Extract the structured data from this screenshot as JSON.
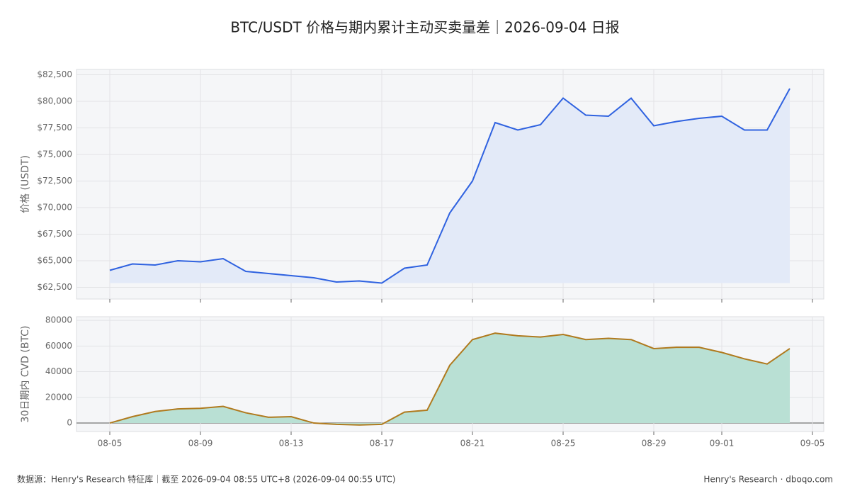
{
  "title": "BTC/USDT 价格与期内累计主动买卖量差｜2026-09-04 日报",
  "footer": {
    "left": "数据源：Henry's Research 特征库｜截至 2026-09-04 08:55 UTC+8 (2026-09-04 00:55 UTC)",
    "right": "Henry's Research  ·  dboqo.com"
  },
  "chart_data": [
    {
      "type": "line",
      "y_label": "价格 (USDT)",
      "grid": true,
      "fill": true,
      "x": [
        "08-05",
        "08-06",
        "08-07",
        "08-08",
        "08-09",
        "08-10",
        "08-11",
        "08-12",
        "08-13",
        "08-14",
        "08-15",
        "08-16",
        "08-17",
        "08-18",
        "08-19",
        "08-20",
        "08-21",
        "08-22",
        "08-23",
        "08-24",
        "08-25",
        "08-26",
        "08-27",
        "08-28",
        "08-29",
        "08-30",
        "08-31",
        "09-01",
        "09-02",
        "09-03",
        "09-04"
      ],
      "series": [
        {
          "color": "#2f62e0",
          "fill_color": "#e3eaf8",
          "values": [
            64100,
            64700,
            64600,
            65000,
            64900,
            65200,
            64000,
            63800,
            63600,
            63400,
            63000,
            63100,
            62900,
            64300,
            64600,
            69500,
            72500,
            78000,
            77300,
            77800,
            80300,
            78700,
            78600,
            80300,
            77700,
            78100,
            78400,
            78600,
            77300,
            77300,
            81200
          ]
        }
      ],
      "xlim": [
        "08-05",
        "09-05"
      ],
      "ylim": [
        61400,
        83000
      ],
      "yticks": [
        {
          "value": 62500,
          "label": "$62,500"
        },
        {
          "value": 65000,
          "label": "$65,000"
        },
        {
          "value": 67500,
          "label": "$67,500"
        },
        {
          "value": 70000,
          "label": "$70,000"
        },
        {
          "value": 72500,
          "label": "$72,500"
        },
        {
          "value": 75000,
          "label": "$75,000"
        },
        {
          "value": 77500,
          "label": "$77,500"
        },
        {
          "value": 80000,
          "label": "$80,000"
        },
        {
          "value": 82500,
          "label": "$82,500"
        }
      ]
    },
    {
      "type": "line",
      "y_label": "30日期内 CVD (BTC)",
      "grid": true,
      "fill": true,
      "x": [
        "08-05",
        "08-06",
        "08-07",
        "08-08",
        "08-09",
        "08-10",
        "08-11",
        "08-12",
        "08-13",
        "08-14",
        "08-15",
        "08-16",
        "08-17",
        "08-18",
        "08-19",
        "08-20",
        "08-21",
        "08-22",
        "08-23",
        "08-24",
        "08-25",
        "08-26",
        "08-27",
        "08-28",
        "08-29",
        "08-30",
        "08-31",
        "09-01",
        "09-02",
        "09-03",
        "09-04"
      ],
      "series": [
        {
          "color": "#b07a1e",
          "fill_color": "#b9e0d4",
          "values": [
            0,
            5000,
            9000,
            11000,
            11500,
            13000,
            8000,
            4500,
            5000,
            0,
            -1000,
            -1500,
            -1000,
            8500,
            10000,
            45000,
            65000,
            70000,
            68000,
            67000,
            69000,
            65000,
            66000,
            65000,
            58000,
            59000,
            59000,
            55000,
            50000,
            46000,
            58000
          ]
        }
      ],
      "xlim": [
        "08-05",
        "09-05"
      ],
      "ylim": [
        -6600,
        82800
      ],
      "yticks": [
        0,
        20000,
        40000,
        60000,
        80000
      ],
      "xticks": [
        "08-05",
        "08-09",
        "08-13",
        "08-17",
        "08-21",
        "08-25",
        "08-29",
        "09-01",
        "09-05"
      ]
    }
  ]
}
